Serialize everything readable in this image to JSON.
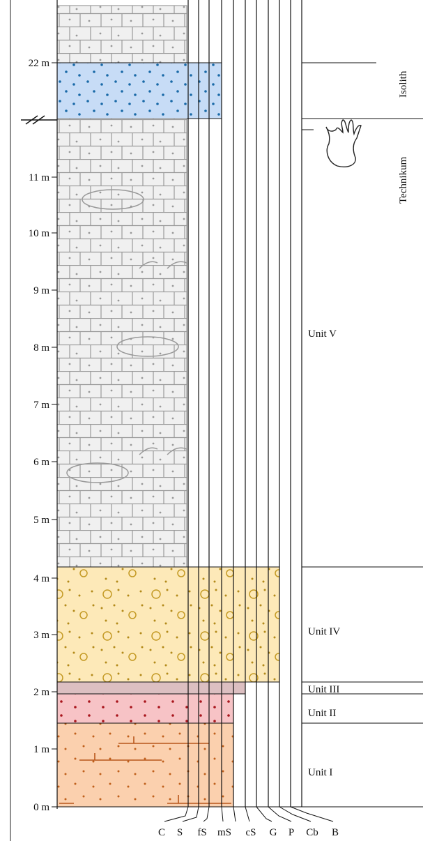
{
  "depth_labels": [
    "22 m",
    "11 m",
    "10 m",
    "9 m",
    "8 m",
    "7 m",
    "6 m",
    "5 m",
    "4 m",
    "3 m",
    "2 m",
    "1 m",
    "0 m"
  ],
  "grain_sizes": [
    "C",
    "S",
    "fS",
    "mS",
    "cS",
    "G",
    "P",
    "Cb",
    "B"
  ],
  "formations": [
    "Isolith",
    "Technikum"
  ],
  "units": [
    "Unit V",
    "Unit IV",
    "Unit III",
    "Unit II",
    "Unit I"
  ]
}
